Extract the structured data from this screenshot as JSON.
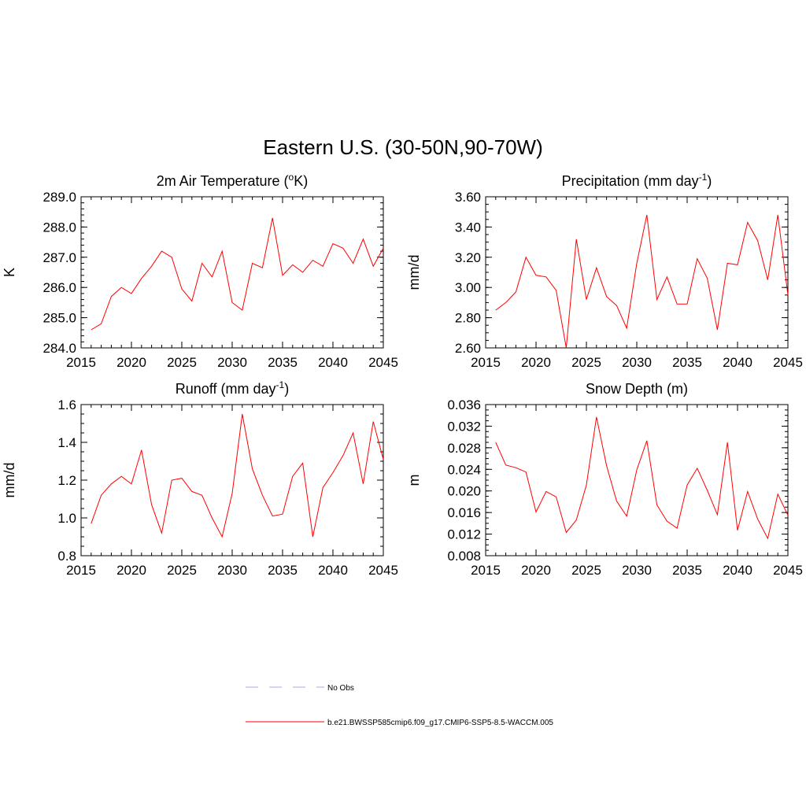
{
  "figure_title": "Eastern U.S. (30-50N,90-70W)",
  "legend": [
    {
      "label": "No Obs",
      "color": "#aaaaee",
      "style": "dashed"
    },
    {
      "label": "b.e21.BWSSP585cmip6.f09_g17.CMIP6-SSP5-8.5-WACCM.005",
      "color": "#ff0000",
      "style": "solid"
    }
  ],
  "chart_data": [
    {
      "type": "line",
      "title": "2m Air Temperature (",
      "title_sup": "o",
      "title_suffix": "K)",
      "ylabel": "K",
      "xlabel": "",
      "xlim": [
        2015,
        2045
      ],
      "ylim": [
        284.0,
        289.0
      ],
      "xticks": [
        2015,
        2020,
        2025,
        2030,
        2035,
        2040,
        2045
      ],
      "yticks": [
        284.0,
        285.0,
        286.0,
        287.0,
        288.0,
        289.0
      ],
      "ytick_labels": [
        "284.0",
        "285.0",
        "286.0",
        "287.0",
        "288.0",
        "289.0"
      ],
      "yminor": 0.2,
      "color": "#ff0000",
      "x": [
        2016,
        2017,
        2018,
        2019,
        2020,
        2021,
        2022,
        2023,
        2024,
        2025,
        2026,
        2027,
        2028,
        2029,
        2030,
        2031,
        2032,
        2033,
        2034,
        2035,
        2036,
        2037,
        2038,
        2039,
        2040,
        2041,
        2042,
        2043,
        2044,
        2045
      ],
      "values": [
        284.6,
        284.8,
        285.7,
        286.0,
        285.8,
        286.3,
        286.7,
        287.2,
        287.0,
        285.95,
        285.55,
        286.8,
        286.35,
        287.2,
        285.5,
        285.25,
        286.8,
        286.65,
        288.3,
        286.4,
        286.75,
        286.5,
        286.9,
        286.7,
        287.45,
        287.3,
        286.8,
        287.6,
        286.7,
        287.3
      ]
    },
    {
      "type": "line",
      "title": "Precipitation (mm day",
      "title_sup": "-1",
      "title_suffix": ")",
      "ylabel": "mm/d",
      "xlabel": "",
      "xlim": [
        2015,
        2045
      ],
      "ylim": [
        2.6,
        3.6
      ],
      "xticks": [
        2015,
        2020,
        2025,
        2030,
        2035,
        2040,
        2045
      ],
      "yticks": [
        2.6,
        2.8,
        3.0,
        3.2,
        3.4,
        3.6
      ],
      "ytick_labels": [
        "2.60",
        "2.80",
        "3.00",
        "3.20",
        "3.40",
        "3.60"
      ],
      "yminor": 0.05,
      "color": "#ff0000",
      "x": [
        2016,
        2017,
        2018,
        2019,
        2020,
        2021,
        2022,
        2023,
        2024,
        2025,
        2026,
        2027,
        2028,
        2029,
        2030,
        2031,
        2032,
        2033,
        2034,
        2035,
        2036,
        2037,
        2038,
        2039,
        2040,
        2041,
        2042,
        2043,
        2044,
        2045
      ],
      "values": [
        2.85,
        2.9,
        2.97,
        3.2,
        3.08,
        3.07,
        2.98,
        2.6,
        3.32,
        2.92,
        3.13,
        2.94,
        2.88,
        2.73,
        3.16,
        3.48,
        2.92,
        3.07,
        2.89,
        2.89,
        3.19,
        3.06,
        2.72,
        3.16,
        3.15,
        3.43,
        3.31,
        3.05,
        3.48,
        2.95
      ]
    },
    {
      "type": "line",
      "title": "Runoff (mm day",
      "title_sup": "-1",
      "title_suffix": ")",
      "ylabel": "mm/d",
      "xlabel": "",
      "xlim": [
        2015,
        2045
      ],
      "ylim": [
        0.8,
        1.6
      ],
      "xticks": [
        2015,
        2020,
        2025,
        2030,
        2035,
        2040,
        2045
      ],
      "yticks": [
        0.8,
        1.0,
        1.2,
        1.4,
        1.6
      ],
      "ytick_labels": [
        "0.8",
        "1.0",
        "1.2",
        "1.4",
        "1.6"
      ],
      "yminor": 0.05,
      "color": "#ff0000",
      "x": [
        2016,
        2017,
        2018,
        2019,
        2020,
        2021,
        2022,
        2023,
        2024,
        2025,
        2026,
        2027,
        2028,
        2029,
        2030,
        2031,
        2032,
        2033,
        2034,
        2035,
        2036,
        2037,
        2038,
        2039,
        2040,
        2041,
        2042,
        2043,
        2044,
        2045
      ],
      "values": [
        0.97,
        1.12,
        1.18,
        1.22,
        1.18,
        1.36,
        1.07,
        0.92,
        1.2,
        1.21,
        1.14,
        1.12,
        1.0,
        0.9,
        1.13,
        1.55,
        1.26,
        1.12,
        1.01,
        1.02,
        1.22,
        1.29,
        0.9,
        1.16,
        1.24,
        1.33,
        1.45,
        1.18,
        1.51,
        1.31
      ]
    },
    {
      "type": "line",
      "title": "Snow Depth (m)",
      "title_sup": "",
      "title_suffix": "",
      "ylabel": "m",
      "xlabel": "",
      "xlim": [
        2015,
        2045
      ],
      "ylim": [
        0.008,
        0.036
      ],
      "xticks": [
        2015,
        2020,
        2025,
        2030,
        2035,
        2040,
        2045
      ],
      "yticks": [
        0.008,
        0.012,
        0.016,
        0.02,
        0.024,
        0.028,
        0.032,
        0.036
      ],
      "ytick_labels": [
        "0.008",
        "0.012",
        "0.016",
        "0.020",
        "0.024",
        "0.028",
        "0.032",
        "0.036"
      ],
      "yminor": 0.001,
      "color": "#ff0000",
      "x": [
        2016,
        2017,
        2018,
        2019,
        2020,
        2021,
        2022,
        2023,
        2024,
        2025,
        2026,
        2027,
        2028,
        2029,
        2030,
        2031,
        2032,
        2033,
        2034,
        2035,
        2036,
        2037,
        2038,
        2039,
        2040,
        2041,
        2042,
        2043,
        2044,
        2045
      ],
      "values": [
        0.029,
        0.0248,
        0.0243,
        0.0235,
        0.0161,
        0.0199,
        0.0189,
        0.0123,
        0.0146,
        0.0211,
        0.0337,
        0.0247,
        0.0181,
        0.0153,
        0.0239,
        0.0293,
        0.0174,
        0.0144,
        0.0131,
        0.0211,
        0.0242,
        0.0201,
        0.0156,
        0.029,
        0.0127,
        0.0199,
        0.0148,
        0.0112,
        0.0194,
        0.0155
      ]
    }
  ]
}
